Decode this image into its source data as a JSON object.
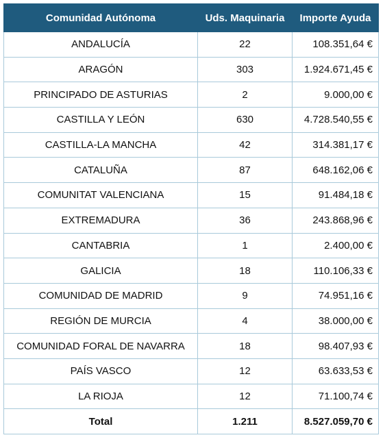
{
  "table": {
    "header": [
      "Comunidad Autónoma",
      "Uds. Maquinaria",
      "Importe Ayuda"
    ],
    "rows": [
      [
        "ANDALUCÍA",
        "22",
        "108.351,64 €"
      ],
      [
        "ARAGÓN",
        "303",
        "1.924.671,45 €"
      ],
      [
        "PRINCIPADO DE ASTURIAS",
        "2",
        "9.000,00 €"
      ],
      [
        "CASTILLA Y LEÓN",
        "630",
        "4.728.540,55 €"
      ],
      [
        "CASTILLA-LA MANCHA",
        "42",
        "314.381,17 €"
      ],
      [
        "CATALUÑA",
        "87",
        "648.162,06 €"
      ],
      [
        "COMUNITAT VALENCIANA",
        "15",
        "91.484,18 €"
      ],
      [
        "EXTREMADURA",
        "36",
        "243.868,96 €"
      ],
      [
        "CANTABRIA",
        "1",
        "2.400,00 €"
      ],
      [
        "GALICIA",
        "18",
        "110.106,33 €"
      ],
      [
        "COMUNIDAD DE MADRID",
        "9",
        "74.951,16 €"
      ],
      [
        "REGIÓN DE MURCIA",
        "4",
        "38.000,00 €"
      ],
      [
        "COMUNIDAD FORAL DE NAVARRA",
        "18",
        "98.407,93 €"
      ],
      [
        "PAÍS VASCO",
        "12",
        "63.633,53 €"
      ],
      [
        "LA RIOJA",
        "12",
        "71.100,74 €"
      ]
    ],
    "total": [
      "Total",
      "1.211",
      "8.527.059,70 €"
    ]
  }
}
